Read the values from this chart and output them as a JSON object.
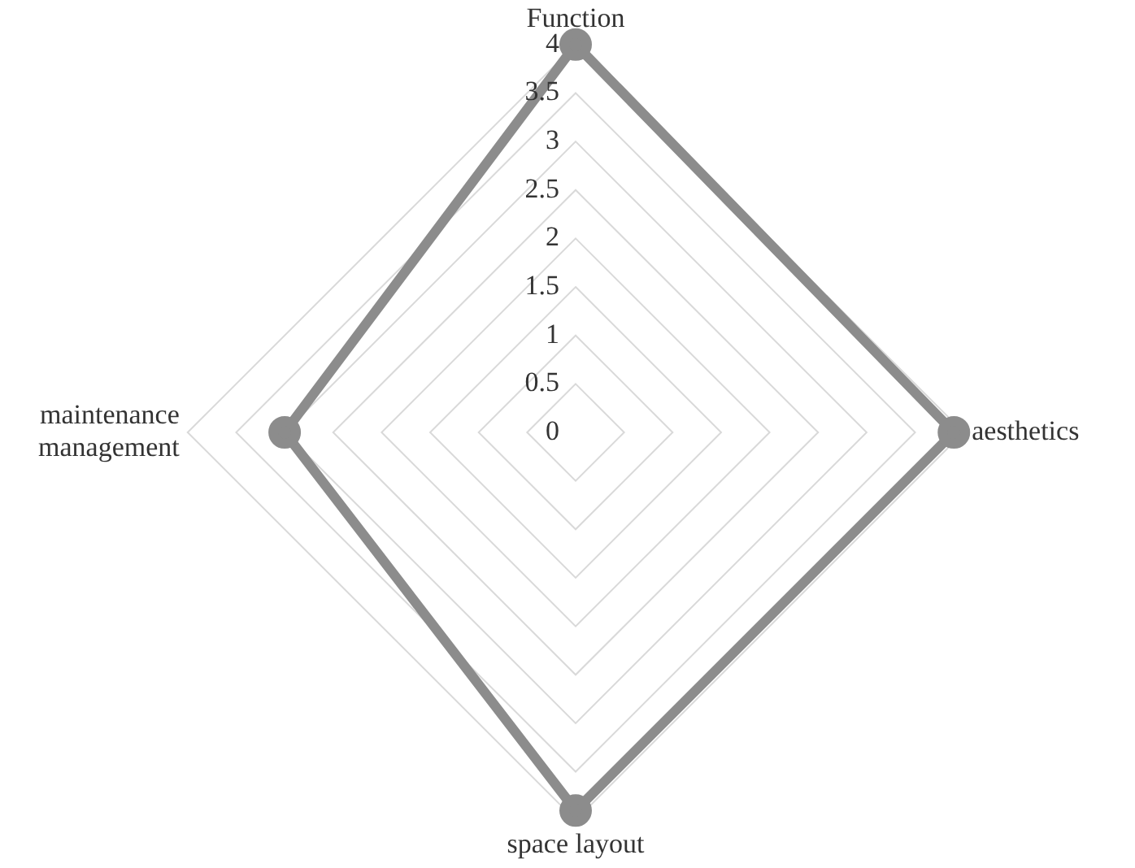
{
  "chart_data": {
    "type": "radar",
    "categories": [
      "Function",
      "aesthetics",
      "space layout",
      "maintenance management"
    ],
    "series": [
      {
        "color": "#8c8c8c",
        "values": [
          4,
          3.9,
          3.9,
          3
        ]
      }
    ],
    "ylim": [
      0,
      4
    ],
    "yticks": [
      0,
      0.5,
      1,
      1.5,
      2,
      2.5,
      3,
      3.5,
      4
    ],
    "grid": true,
    "legend": false,
    "marker": "circle"
  }
}
